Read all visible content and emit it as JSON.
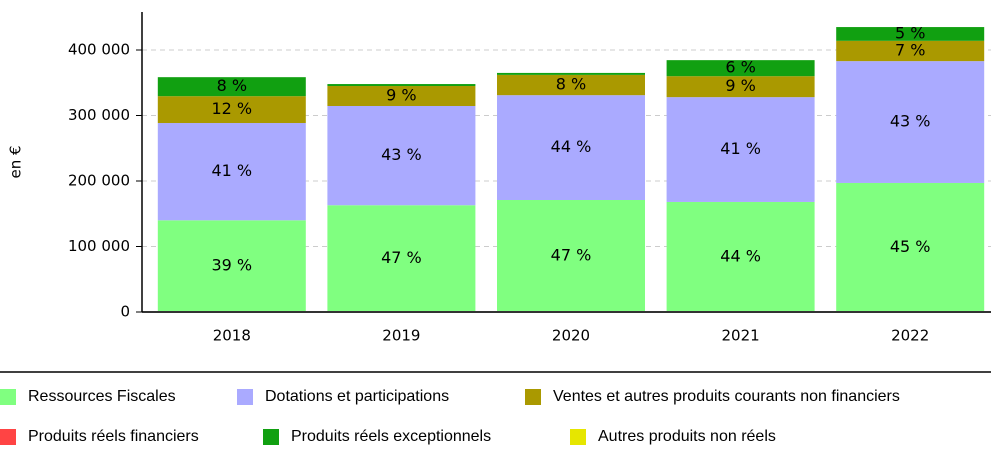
{
  "chart_data": {
    "type": "stacked_bar",
    "y_label": "en €",
    "categories": [
      "2018",
      "2019",
      "2020",
      "2021",
      "2022"
    ],
    "series": [
      {
        "name": "Ressources Fiscales",
        "color": "#80ff80",
        "values": [
          140000,
          163000,
          171000,
          168000,
          197000
        ],
        "share_labels": [
          "39 %",
          "47 %",
          "47 %",
          "44 %",
          "45 %"
        ]
      },
      {
        "name": "Dotations et participations",
        "color": "#aaaaff",
        "values": [
          148500,
          151500,
          160000,
          160000,
          186000
        ],
        "share_labels": [
          "41 %",
          "43 %",
          "44 %",
          "41 %",
          "43 %"
        ]
      },
      {
        "name": "Ventes et autres produits courants non financiers",
        "color": "#aa9900",
        "values": [
          41000,
          30500,
          31000,
          32000,
          31000
        ],
        "share_labels": [
          "12 %",
          "9 %",
          "8 %",
          "9 %",
          "7 %"
        ]
      },
      {
        "name": "Produits réels financiers",
        "color": "#ff4444",
        "values": [
          0,
          0,
          0,
          0,
          0
        ]
      },
      {
        "name": "Produits réels exceptionnels",
        "color": "#11a011",
        "values": [
          29000,
          3000,
          3000,
          24500,
          21000
        ],
        "share_labels": [
          "8 %",
          null,
          null,
          "6 %",
          "5 %"
        ]
      },
      {
        "name": "Autres produits non réels",
        "color": "#e6e600",
        "values": [
          0,
          0,
          0,
          0,
          0
        ]
      }
    ],
    "ylim": [
      0,
      458000
    ],
    "yticks": [
      0,
      {
        "value": 100000,
        "label": "100 000"
      },
      {
        "value": 200000,
        "label": "200 000"
      },
      {
        "value": 300000,
        "label": "300 000"
      },
      {
        "value": 400000,
        "label": "400 000"
      }
    ],
    "grid": true
  }
}
